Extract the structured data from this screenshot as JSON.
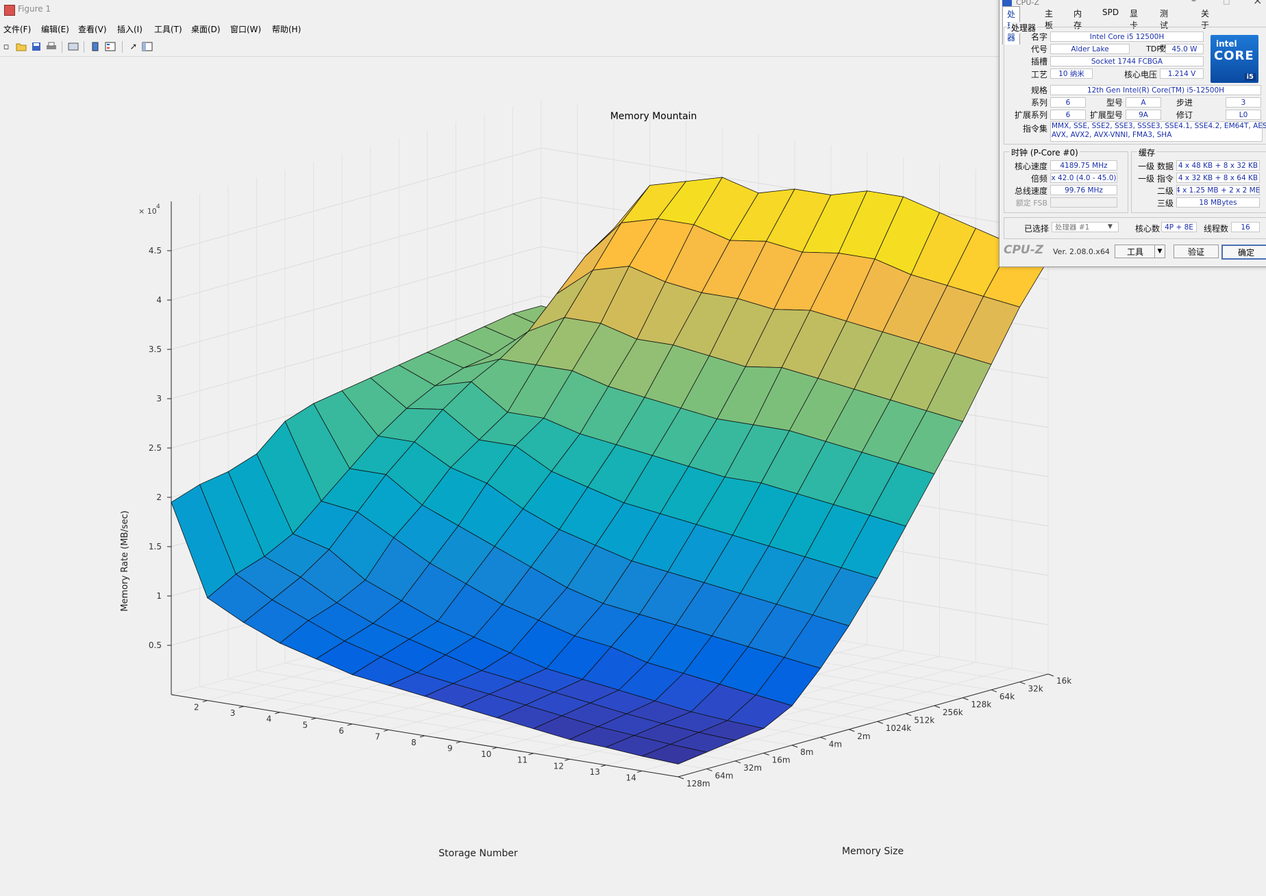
{
  "window": {
    "title": "Figure 1"
  },
  "menu": [
    "文件(F)",
    "编辑(E)",
    "查看(V)",
    "插入(I)",
    "工具(T)",
    "桌面(D)",
    "窗口(W)",
    "帮助(H)"
  ],
  "toolbar": {
    "icons": [
      "new-icon",
      "open-icon",
      "save-icon",
      "print-icon",
      "export-icon",
      "colorbar-icon",
      "legend-icon",
      "pointer-icon",
      "property-editor-icon"
    ]
  },
  "plot": {
    "title": "Memory Mountain",
    "zlabel": "Memory Rate (MB/sec)",
    "xlabel": "Storage Number",
    "ylabel": "Memory Size",
    "exponent_base": "× 10",
    "exponent_pow": "4",
    "z_ticks": [
      "0.5",
      "1",
      "1.5",
      "2",
      "2.5",
      "3",
      "3.5",
      "4",
      "4.5"
    ],
    "x_ticks": [
      "2",
      "3",
      "4",
      "5",
      "6",
      "7",
      "8",
      "9",
      "10",
      "11",
      "12",
      "13",
      "14"
    ],
    "y_ticks": [
      "128m",
      "64m",
      "32m",
      "16m",
      "8m",
      "4m",
      "2m",
      "1024k",
      "512k",
      "256k",
      "128k",
      "64k",
      "32k",
      "16k"
    ]
  },
  "chart_data": {
    "type": "surface",
    "title": "Memory Mountain",
    "xlabel": "Storage Number",
    "ylabel": "Memory Size",
    "zlabel": "Memory Rate (MB/sec)",
    "z_multiplier": "10^4",
    "x": [
      1,
      2,
      3,
      4,
      5,
      6,
      7,
      8,
      9,
      10,
      11,
      12,
      13,
      14,
      15
    ],
    "y": [
      "128m",
      "64m",
      "32m",
      "16m",
      "8m",
      "4m",
      "2m",
      "1024k",
      "512k",
      "256k",
      "128k",
      "64k",
      "32k",
      "16k"
    ],
    "zlim": [
      0,
      50000
    ],
    "grid": true,
    "z": [
      [
        19500,
        20500,
        21000,
        22000,
        24500,
        25500,
        26000,
        26500,
        27000,
        27500,
        28000,
        28500,
        29000,
        29000
      ],
      [
        10400,
        12000,
        13000,
        14500,
        17000,
        19500,
        22000,
        24000,
        25500,
        26500,
        27000,
        27500,
        28000,
        28500
      ],
      [
        8500,
        10000,
        11500,
        13500,
        16500,
        19500,
        22000,
        24500,
        26500,
        28000,
        30000,
        33000,
        36000,
        38000
      ],
      [
        7000,
        8500,
        9500,
        11000,
        14500,
        17000,
        20000,
        22000,
        24000,
        28000,
        32000,
        36000,
        40000,
        43000
      ],
      [
        6000,
        7000,
        8000,
        9500,
        12500,
        15500,
        19000,
        22000,
        24000,
        28000,
        32000,
        37000,
        41000,
        44000
      ],
      [
        5000,
        6000,
        7000,
        8000,
        11000,
        14000,
        17000,
        20000,
        23000,
        27000,
        31000,
        36000,
        41000,
        45000
      ],
      [
        4500,
        5000,
        6000,
        7000,
        9500,
        12500,
        15500,
        19000,
        22500,
        26500,
        31000,
        35500,
        40000,
        44000
      ],
      [
        4000,
        4500,
        5000,
        6000,
        8500,
        11000,
        14500,
        18000,
        22000,
        26000,
        30500,
        35500,
        40500,
        45000
      ],
      [
        3500,
        4000,
        4500,
        5000,
        7500,
        10000,
        13500,
        17500,
        21500,
        25500,
        30000,
        35000,
        40000,
        45000
      ],
      [
        3000,
        3500,
        4000,
        4500,
        7000,
        9500,
        13000,
        17000,
        21000,
        25500,
        30500,
        35500,
        40500,
        46000
      ],
      [
        2500,
        3000,
        3500,
        4000,
        6000,
        9000,
        12500,
        16500,
        21000,
        25500,
        30000,
        35000,
        40500,
        46000
      ],
      [
        2000,
        2500,
        3000,
        3500,
        5500,
        8500,
        12000,
        16000,
        20500,
        25000,
        29500,
        34500,
        39500,
        45000
      ],
      [
        1800,
        2200,
        2600,
        3000,
        5000,
        8000,
        11500,
        15500,
        20000,
        24500,
        29000,
        34000,
        39000,
        44000
      ],
      [
        1500,
        1900,
        2300,
        2700,
        4500,
        7500,
        11000,
        15000,
        19500,
        24000,
        28500,
        33500,
        38500,
        43000
      ],
      [
        1300,
        1700,
        2100,
        2500,
        4000,
        7000,
        10500,
        14500,
        19000,
        23500,
        28000,
        33000,
        38000,
        42000
      ]
    ]
  },
  "cpuz": {
    "title": "CPU-Z",
    "tabs": [
      "处理器",
      "主板",
      "内存",
      "SPD",
      "显卡",
      "测试分数",
      "关于"
    ],
    "processor_group": "处理器",
    "name_label": "名字",
    "name": "Intel Core i5 12500H",
    "codename_label": "代号",
    "codename": "Alder Lake",
    "tdp_label": "TDP",
    "tdp": "45.0 W",
    "socket_label": "插槽",
    "socket": "Socket 1744 FCBGA",
    "tech_label": "工艺",
    "tech": "10 纳米",
    "voltage_label": "核心电压",
    "voltage": "1.214 V",
    "spec_label": "规格",
    "spec": "12th Gen Intel(R) Core(TM) i5-12500H",
    "family_label": "系列",
    "family": "6",
    "model_label": "型号",
    "model": "A",
    "stepping_label": "步进",
    "stepping": "3",
    "extfamily_label": "扩展系列",
    "extfamily": "6",
    "extmodel_label": "扩展型号",
    "extmodel": "9A",
    "revision_label": "修订",
    "revision": "L0",
    "instr_label": "指令集",
    "instr_line1": "MMX, SSE, SSE2, SSE3, SSSE3, SSE4.1, SSE4.2, EM64T, AES,",
    "instr_line2": "AVX, AVX2, AVX-VNNI, FMA3, SHA",
    "clock_group": "时钟 (P-Core #0)",
    "core_speed_label": "核心速度",
    "core_speed": "4189.75 MHz",
    "multiplier_label": "倍频",
    "multiplier": "x 42.0 (4.0 - 45.0)",
    "bus_speed_label": "总线速度",
    "bus_speed": "99.76 MHz",
    "fsb_label": "额定 FSB",
    "fsb": "",
    "cache_group": "缓存",
    "l1d_label": "一级 数据",
    "l1d": "4 x 48 KB + 8 x 32 KB",
    "l1i_label": "一级 指令",
    "l1i": "4 x 32 KB + 8 x 64 KB",
    "l2_label": "二级",
    "l2": "4 x 1.25 MB + 2 x 2 MB",
    "l3_label": "三级",
    "l3": "18 MBytes",
    "selection_label": "已选择",
    "selection": "处理器 #1",
    "cores_label": "核心数",
    "cores": "4P + 8E",
    "threads_label": "线程数",
    "threads": "16",
    "brand": "CPU-Z",
    "version": "Ver. 2.08.0.x64",
    "tools_button": "工具",
    "validate_button": "验证",
    "ok_button": "确定",
    "logo_top": "intel",
    "logo_mid": "CORE",
    "logo_badge": "i5"
  }
}
